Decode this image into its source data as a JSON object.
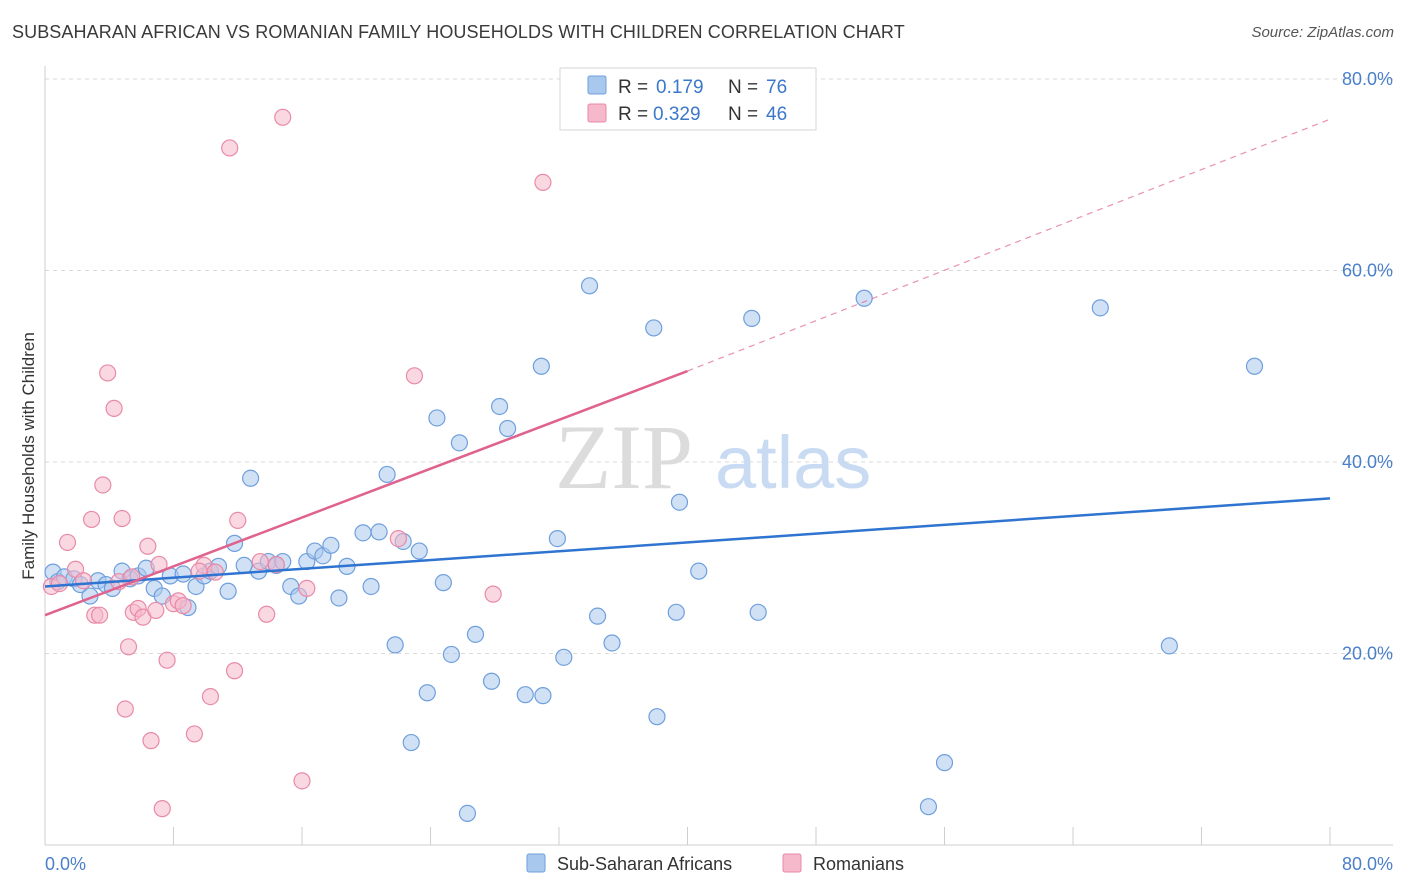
{
  "title": "SUBSAHARAN AFRICAN VS ROMANIAN FAMILY HOUSEHOLDS WITH CHILDREN CORRELATION CHART",
  "source": "Source: ZipAtlas.com",
  "watermark": {
    "zip": "ZIP",
    "atlas": "atlas"
  },
  "colors": {
    "blue_fill": "#a9c8ee",
    "blue_stroke": "#6f9fdc",
    "blue_line": "#2f74d0",
    "pink_fill": "#f6b8cb",
    "pink_stroke": "#e88aa8",
    "pink_line": "#e0628e",
    "grid": "#d9d9d9",
    "axis_text": "#4a7fc9"
  },
  "legend": {
    "rows": [
      {
        "r_label": "R =",
        "r_value": "0.179",
        "n_label": "N =",
        "n_value": "76"
      },
      {
        "r_label": "R =",
        "r_value": "0.329",
        "n_label": "N =",
        "n_value": "46"
      }
    ]
  },
  "chart_data": {
    "type": "scatter",
    "title": "SUBSAHARAN AFRICAN VS ROMANIAN FAMILY HOUSEHOLDS WITH CHILDREN CORRELATION CHART",
    "xlabel": "",
    "ylabel": "Family Households with Children",
    "xlim": [
      0,
      80
    ],
    "ylim": [
      0,
      80
    ],
    "x_tick_labels": [
      "0.0%",
      "80.0%"
    ],
    "y_tick_labels": [
      "20.0%",
      "40.0%",
      "60.0%",
      "80.0%"
    ],
    "y_ticks": [
      20,
      40,
      60,
      80
    ],
    "grid": true,
    "legend_position": "top-center",
    "series": [
      {
        "name": "Sub-Saharan Africans",
        "R": 0.179,
        "N": 76,
        "trend": {
          "x0": 0,
          "y0": 27.0,
          "x1": 80,
          "y1": 36.2
        },
        "points": [
          [
            0.5,
            28.5
          ],
          [
            0.8,
            27.5
          ],
          [
            1.2,
            28.0
          ],
          [
            1.8,
            27.8
          ],
          [
            2.2,
            27.2
          ],
          [
            2.8,
            26.0
          ],
          [
            3.3,
            27.6
          ],
          [
            3.8,
            27.2
          ],
          [
            4.2,
            26.8
          ],
          [
            4.8,
            28.6
          ],
          [
            5.3,
            27.8
          ],
          [
            5.8,
            28.1
          ],
          [
            6.3,
            28.9
          ],
          [
            6.8,
            26.8
          ],
          [
            7.3,
            26.0
          ],
          [
            7.8,
            28.1
          ],
          [
            8.6,
            28.3
          ],
          [
            8.9,
            24.8
          ],
          [
            9.4,
            27.0
          ],
          [
            9.9,
            28.1
          ],
          [
            10.3,
            28.6
          ],
          [
            10.8,
            29.1
          ],
          [
            11.4,
            26.5
          ],
          [
            11.8,
            31.5
          ],
          [
            12.4,
            29.2
          ],
          [
            12.8,
            38.3
          ],
          [
            13.3,
            28.6
          ],
          [
            13.9,
            29.6
          ],
          [
            14.4,
            29.2
          ],
          [
            14.8,
            29.6
          ],
          [
            15.3,
            27.0
          ],
          [
            15.8,
            26.0
          ],
          [
            16.3,
            29.6
          ],
          [
            16.8,
            30.7
          ],
          [
            17.3,
            30.2
          ],
          [
            17.8,
            31.3
          ],
          [
            18.3,
            25.8
          ],
          [
            18.8,
            29.1
          ],
          [
            19.8,
            32.6
          ],
          [
            20.3,
            27.0
          ],
          [
            20.8,
            32.7
          ],
          [
            21.3,
            38.7
          ],
          [
            21.8,
            20.9
          ],
          [
            22.3,
            31.7
          ],
          [
            22.8,
            10.7
          ],
          [
            23.3,
            30.7
          ],
          [
            23.8,
            15.9
          ],
          [
            24.4,
            44.6
          ],
          [
            24.8,
            27.4
          ],
          [
            25.3,
            19.9
          ],
          [
            25.8,
            42.0
          ],
          [
            26.3,
            3.3
          ],
          [
            26.8,
            22.0
          ],
          [
            27.8,
            17.1
          ],
          [
            28.3,
            45.8
          ],
          [
            28.8,
            43.5
          ],
          [
            29.9,
            15.7
          ],
          [
            30.9,
            50.0
          ],
          [
            31.0,
            15.6
          ],
          [
            31.9,
            32.0
          ],
          [
            32.3,
            19.6
          ],
          [
            33.9,
            58.4
          ],
          [
            34.4,
            23.9
          ],
          [
            35.3,
            21.1
          ],
          [
            37.9,
            54.0
          ],
          [
            38.1,
            13.4
          ],
          [
            39.3,
            24.3
          ],
          [
            39.5,
            35.8
          ],
          [
            40.7,
            28.6
          ],
          [
            44.0,
            55.0
          ],
          [
            44.4,
            24.3
          ],
          [
            51.0,
            57.1
          ],
          [
            55.0,
            4.0
          ],
          [
            56.0,
            8.6
          ],
          [
            65.7,
            56.1
          ],
          [
            70.0,
            20.8
          ],
          [
            75.3,
            50.0
          ]
        ]
      },
      {
        "name": "Romanians",
        "R": 0.329,
        "N": 46,
        "trend": {
          "x0": 0,
          "y0": 24.0,
          "x1": 40,
          "y1": 49.5,
          "dash_to_x": 80,
          "dash_to_y": 75.8
        },
        "points": [
          [
            0.4,
            27.0
          ],
          [
            0.9,
            27.3
          ],
          [
            1.4,
            31.6
          ],
          [
            1.9,
            28.8
          ],
          [
            2.4,
            27.6
          ],
          [
            2.9,
            34.0
          ],
          [
            3.1,
            24.0
          ],
          [
            3.4,
            24.0
          ],
          [
            3.6,
            37.6
          ],
          [
            3.9,
            49.3
          ],
          [
            4.3,
            45.6
          ],
          [
            4.6,
            27.5
          ],
          [
            4.8,
            34.1
          ],
          [
            5.0,
            14.2
          ],
          [
            5.2,
            20.7
          ],
          [
            5.5,
            24.3
          ],
          [
            5.8,
            24.7
          ],
          [
            6.1,
            23.8
          ],
          [
            6.4,
            31.2
          ],
          [
            6.6,
            10.9
          ],
          [
            6.9,
            24.5
          ],
          [
            7.1,
            29.3
          ],
          [
            7.3,
            3.8
          ],
          [
            7.6,
            19.3
          ],
          [
            8.0,
            25.2
          ],
          [
            8.3,
            25.5
          ],
          [
            9.3,
            11.6
          ],
          [
            9.9,
            29.2
          ],
          [
            10.3,
            15.5
          ],
          [
            10.6,
            28.5
          ],
          [
            11.5,
            72.8
          ],
          [
            11.8,
            18.2
          ],
          [
            12.0,
            33.9
          ],
          [
            13.4,
            29.6
          ],
          [
            13.8,
            24.1
          ],
          [
            14.4,
            29.3
          ],
          [
            14.8,
            76.0
          ],
          [
            16.0,
            6.7
          ],
          [
            16.3,
            26.8
          ],
          [
            22.0,
            32.0
          ],
          [
            23.0,
            49.0
          ],
          [
            27.9,
            26.2
          ],
          [
            31.0,
            69.2
          ],
          [
            9.6,
            28.6
          ],
          [
            5.4,
            28.0
          ],
          [
            8.6,
            25.0
          ]
        ]
      }
    ]
  },
  "bottom_legend": [
    "Sub-Saharan Africans",
    "Romanians"
  ]
}
